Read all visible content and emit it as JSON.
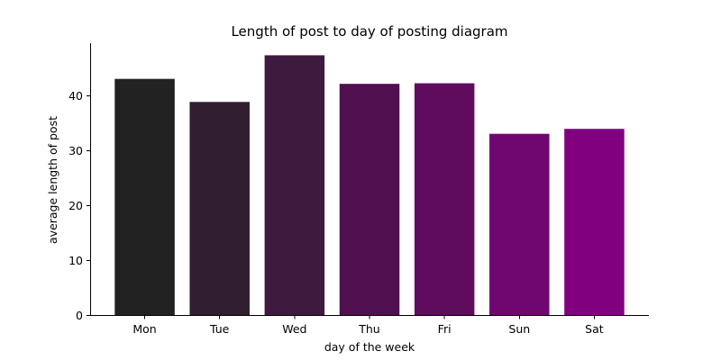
{
  "chart_data": {
    "type": "bar",
    "title": "Length of post to day of posting diagram",
    "xlabel": "day of the week",
    "ylabel": "average length of post",
    "categories": [
      "Mon",
      "Tue",
      "Wed",
      "Thu",
      "Fri",
      "Sun",
      "Sat"
    ],
    "values": [
      43.0,
      38.8,
      47.3,
      42.1,
      42.2,
      33.0,
      33.9
    ],
    "colors": [
      "#222222",
      "#311e31",
      "#3f1a3f",
      "#501050",
      "#5f0c5f",
      "#700770",
      "#800080"
    ],
    "ylim": [
      0,
      49.5
    ],
    "yticks": [
      0,
      10,
      20,
      30,
      40
    ],
    "grid": false,
    "spines": [
      "left",
      "bottom"
    ]
  }
}
